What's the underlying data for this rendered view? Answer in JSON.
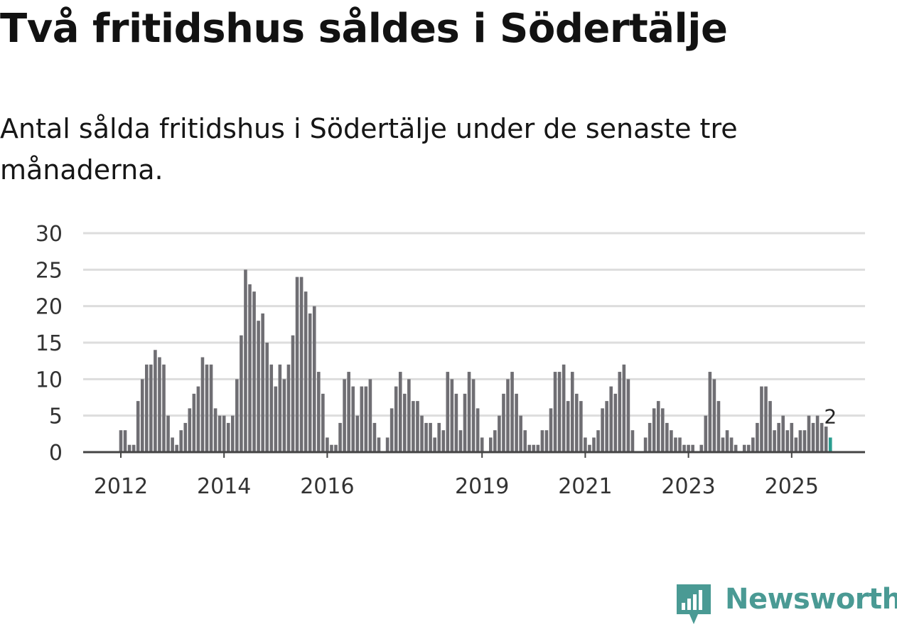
{
  "title": "Två fritidshus såldes i Södertälje",
  "subtitle": "Antal sålda fritidshus i Södertälje under de senaste tre månaderna.",
  "brand": {
    "name": "Newsworthy",
    "logo_icon": "bar-chart-pin-icon"
  },
  "colors": {
    "bar": "#6f6e73",
    "highlight": "#2a9d8f",
    "grid": "#dddddd",
    "axis": "#444444",
    "brand": "#4a9a94"
  },
  "chart_data": {
    "type": "bar",
    "title": "Två fritidshus såldes i Södertälje",
    "xlabel": "",
    "ylabel": "",
    "ylim": [
      0,
      30
    ],
    "yticks": [
      0,
      5,
      10,
      15,
      20,
      25,
      30
    ],
    "xticks": [
      {
        "label": "2012",
        "index": 0
      },
      {
        "label": "2014",
        "index": 24
      },
      {
        "label": "2016",
        "index": 48
      },
      {
        "label": "2019",
        "index": 84
      },
      {
        "label": "2021",
        "index": 108
      },
      {
        "label": "2023",
        "index": 132
      },
      {
        "label": "2025",
        "index": 156
      }
    ],
    "last_value_label": "2",
    "values": [
      3,
      3,
      1,
      1,
      7,
      10,
      12,
      12,
      14,
      13,
      12,
      5,
      2,
      1,
      3,
      4,
      6,
      8,
      9,
      13,
      12,
      12,
      6,
      5,
      5,
      4,
      5,
      10,
      16,
      25,
      23,
      22,
      18,
      19,
      15,
      12,
      9,
      12,
      10,
      12,
      16,
      24,
      24,
      22,
      19,
      20,
      11,
      8,
      2,
      1,
      1,
      4,
      10,
      11,
      9,
      5,
      9,
      9,
      10,
      4,
      2,
      0,
      2,
      6,
      9,
      11,
      8,
      10,
      7,
      7,
      5,
      4,
      4,
      2,
      4,
      3,
      11,
      10,
      8,
      3,
      8,
      11,
      10,
      6,
      2,
      0,
      2,
      3,
      5,
      8,
      10,
      11,
      8,
      5,
      3,
      1,
      1,
      1,
      3,
      3,
      6,
      11,
      11,
      12,
      7,
      11,
      8,
      7,
      2,
      1,
      2,
      3,
      6,
      7,
      9,
      8,
      11,
      12,
      10,
      3,
      0,
      0,
      2,
      4,
      6,
      7,
      6,
      4,
      3,
      2,
      2,
      1,
      1,
      1,
      0,
      1,
      5,
      11,
      10,
      7,
      2,
      3,
      2,
      1,
      0,
      1,
      1,
      2,
      4,
      9,
      9,
      7,
      3,
      4,
      5,
      3,
      4,
      2,
      3,
      3,
      5,
      4,
      5,
      4,
      3.5,
      2
    ]
  }
}
